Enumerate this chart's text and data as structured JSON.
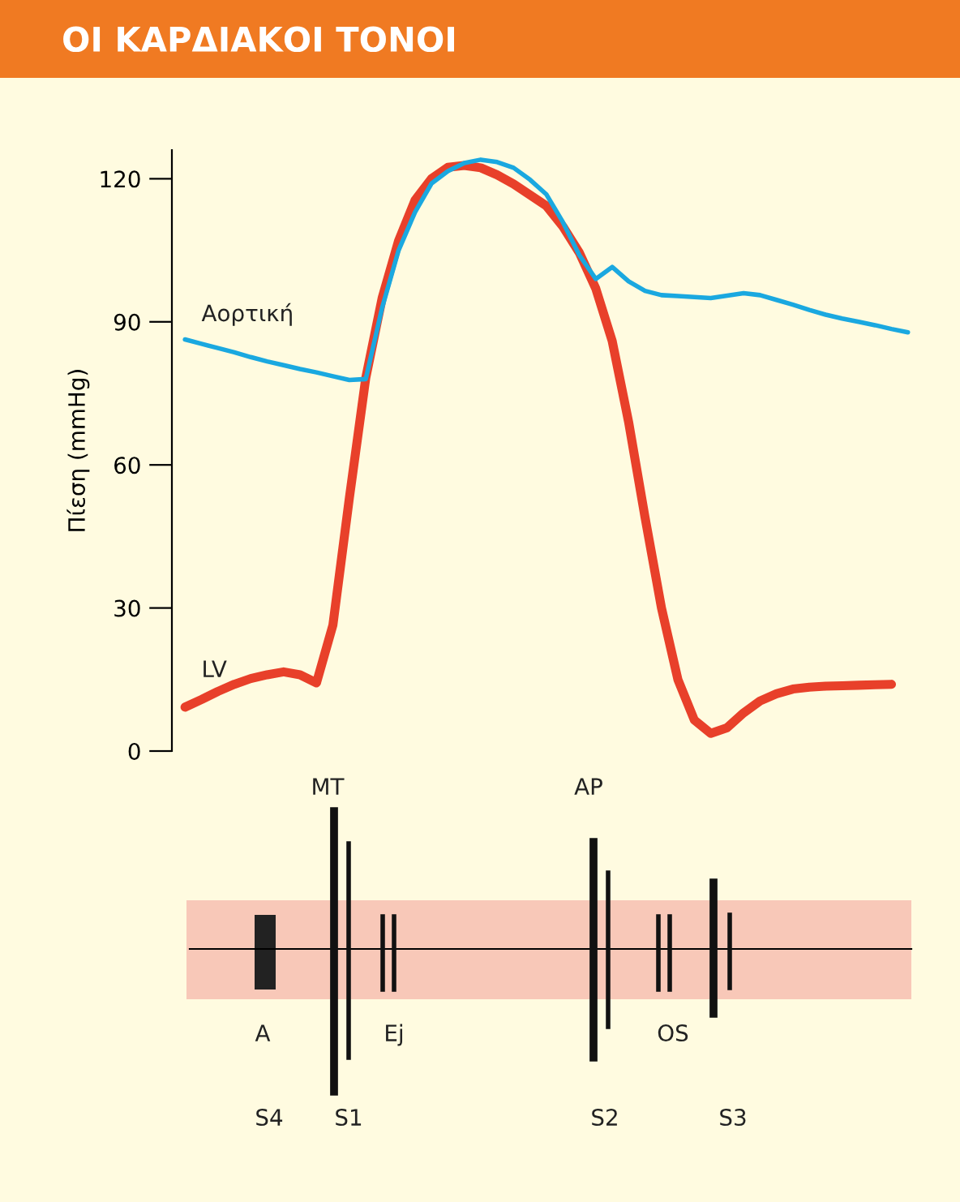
{
  "chart_data": [
    {
      "type": "line",
      "title": "ΟΙ ΚΑΡΔΙΑΚΟΙ ΤΟΝΟΙ",
      "ylabel": "Πίεση (mmHg)",
      "categories": [
        null,
        null,
        null,
        null,
        null,
        null,
        null,
        null,
        null,
        null,
        null,
        null,
        null,
        null,
        null,
        null,
        null,
        null,
        null,
        null,
        null,
        null,
        null,
        null,
        null,
        null,
        null,
        null,
        null,
        null,
        null,
        null,
        null,
        null,
        null,
        null,
        null,
        null,
        null,
        null,
        null,
        null,
        null,
        null,
        null
      ],
      "series": [
        {
          "name": "Αορτική",
          "color": "#1aa8e0",
          "values": [
            86.3,
            85.4,
            84.5,
            83.6,
            82.6,
            81.7,
            80.9,
            80.1,
            79.4,
            78.6,
            77.8,
            78,
            93,
            105,
            113,
            119,
            121.6,
            123.3,
            124,
            123.5,
            122.3,
            119.8,
            116.7,
            110.9,
            104,
            99,
            101.5,
            98.5,
            96.5,
            95.6,
            95.4,
            95.2,
            95,
            95.5,
            96,
            95.6,
            94.6,
            93.6,
            92.5,
            91.5,
            90.7,
            90,
            89.3,
            88.5,
            87.8
          ]
        },
        {
          "name": "LV",
          "color": "#e8402a",
          "values": [
            9.2,
            10.8,
            12.5,
            14,
            15.2,
            16,
            16.6,
            16,
            14.3,
            26.4,
            53,
            78.2,
            95,
            107,
            115.5,
            120,
            122.4,
            122.8,
            122.3,
            120.8,
            118.9,
            116.6,
            114.3,
            110,
            104.5,
            97,
            86,
            69,
            49,
            30,
            15,
            6.5,
            3.7,
            4.9,
            8,
            10.5,
            12,
            13,
            13.4,
            13.6,
            13.7,
            13.8,
            13.9,
            14,
            null
          ]
        }
      ],
      "ylim": [
        0,
        126
      ],
      "yticks": [
        0,
        30,
        60,
        90,
        120
      ],
      "tick_labels": "y",
      "grid": false,
      "legend": false
    },
    {
      "type": "other",
      "annotations": [
        "MT",
        "AP",
        "A",
        "Ej",
        "OS",
        "S4",
        "S1",
        "S2",
        "S3"
      ]
    }
  ]
}
